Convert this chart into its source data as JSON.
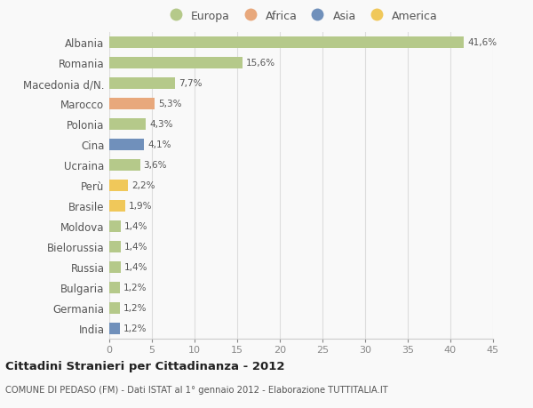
{
  "countries": [
    "Albania",
    "Romania",
    "Macedonia d/N.",
    "Marocco",
    "Polonia",
    "Cina",
    "Ucraina",
    "Perù",
    "Brasile",
    "Moldova",
    "Bielorussia",
    "Russia",
    "Bulgaria",
    "Germania",
    "India"
  ],
  "values": [
    41.6,
    15.6,
    7.7,
    5.3,
    4.3,
    4.1,
    3.6,
    2.2,
    1.9,
    1.4,
    1.4,
    1.4,
    1.2,
    1.2,
    1.2
  ],
  "labels": [
    "41,6%",
    "15,6%",
    "7,7%",
    "5,3%",
    "4,3%",
    "4,1%",
    "3,6%",
    "2,2%",
    "1,9%",
    "1,4%",
    "1,4%",
    "1,4%",
    "1,2%",
    "1,2%",
    "1,2%"
  ],
  "continents": [
    "Europa",
    "Europa",
    "Europa",
    "Africa",
    "Europa",
    "Asia",
    "Europa",
    "America",
    "America",
    "Europa",
    "Europa",
    "Europa",
    "Europa",
    "Europa",
    "Asia"
  ],
  "continent_colors": {
    "Europa": "#b5c98a",
    "Africa": "#e8a87c",
    "Asia": "#7090bb",
    "America": "#f0c85a"
  },
  "legend_order": [
    "Europa",
    "Africa",
    "Asia",
    "America"
  ],
  "xlim": [
    0,
    45
  ],
  "xticks": [
    0,
    5,
    10,
    15,
    20,
    25,
    30,
    35,
    40,
    45
  ],
  "title": "Cittadini Stranieri per Cittadinanza - 2012",
  "subtitle": "COMUNE DI PEDASO (FM) - Dati ISTAT al 1° gennaio 2012 - Elaborazione TUTTITALIA.IT",
  "bg_color": "#f9f9f9",
  "bar_height": 0.55,
  "grid_color": "#dddddd"
}
